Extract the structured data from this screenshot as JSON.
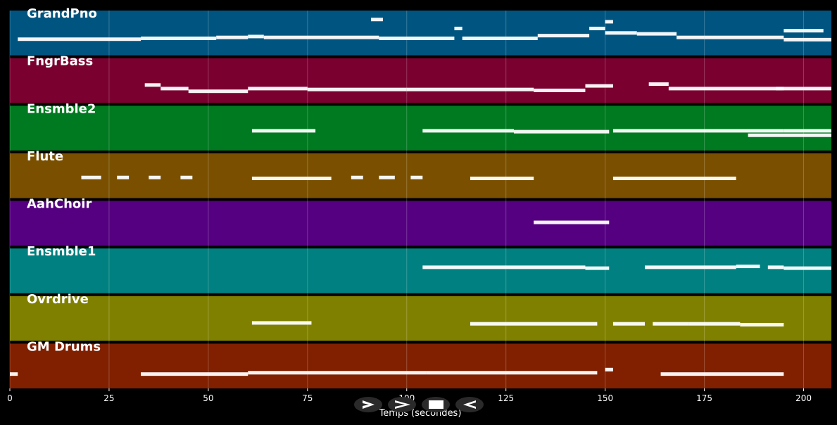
{
  "chart_data": {
    "type": "piano-roll",
    "xlabel": "Temps (secondes)",
    "xlim": [
      0,
      207
    ],
    "xticks": [
      0,
      25,
      50,
      75,
      100,
      125,
      150,
      175,
      200
    ],
    "grid": true,
    "background": "#000000",
    "note_color": "#ffffff",
    "tracks": [
      {
        "name": "GrandPno",
        "color": "#005580",
        "notes": [
          [
            2,
            33,
            0.64
          ],
          [
            33,
            52,
            0.62
          ],
          [
            52,
            60,
            0.6
          ],
          [
            60,
            64,
            0.58
          ],
          [
            64,
            93,
            0.6
          ],
          [
            91,
            94,
            0.2
          ],
          [
            93,
            112,
            0.62
          ],
          [
            112,
            114,
            0.4
          ],
          [
            114,
            133,
            0.62
          ],
          [
            133,
            146,
            0.56
          ],
          [
            146,
            150,
            0.4
          ],
          [
            150,
            152,
            0.25
          ],
          [
            150,
            158,
            0.5
          ],
          [
            158,
            168,
            0.52
          ],
          [
            168,
            175,
            0.6
          ],
          [
            175,
            195,
            0.6
          ],
          [
            195,
            205,
            0.45
          ],
          [
            195,
            207,
            0.65
          ]
        ]
      },
      {
        "name": "FngrBass",
        "color": "#7a0030",
        "notes": [
          [
            34,
            38,
            0.6
          ],
          [
            38,
            45,
            0.68
          ],
          [
            45,
            60,
            0.74
          ],
          [
            60,
            75,
            0.68
          ],
          [
            75,
            100,
            0.7
          ],
          [
            100,
            132,
            0.7
          ],
          [
            132,
            145,
            0.72
          ],
          [
            145,
            152,
            0.62
          ],
          [
            161,
            166,
            0.58
          ],
          [
            166,
            195,
            0.68
          ],
          [
            193,
            207,
            0.68
          ]
        ]
      },
      {
        "name": "Ensmble2",
        "color": "#007a20",
        "notes": [
          [
            61,
            77,
            0.56
          ],
          [
            104,
            127,
            0.56
          ],
          [
            127,
            151,
            0.58
          ],
          [
            152,
            195,
            0.56
          ],
          [
            186,
            207,
            0.66
          ],
          [
            195,
            207,
            0.56
          ]
        ]
      },
      {
        "name": "Flute",
        "color": "#7a5000",
        "notes": [
          [
            18,
            23,
            0.54
          ],
          [
            27,
            30,
            0.54
          ],
          [
            35,
            38,
            0.54
          ],
          [
            43,
            46,
            0.54
          ],
          [
            61,
            81,
            0.56
          ],
          [
            86,
            89,
            0.54
          ],
          [
            93,
            97,
            0.54
          ],
          [
            101,
            104,
            0.54
          ],
          [
            116,
            132,
            0.56
          ],
          [
            152,
            183,
            0.56
          ]
        ]
      },
      {
        "name": "AahChoir",
        "color": "#550080",
        "notes": [
          [
            132,
            151,
            0.48
          ]
        ]
      },
      {
        "name": "Ensmble1",
        "color": "#008080",
        "notes": [
          [
            104,
            145,
            0.42
          ],
          [
            145,
            151,
            0.44
          ],
          [
            160,
            183,
            0.42
          ],
          [
            183,
            189,
            0.4
          ],
          [
            191,
            195,
            0.42
          ],
          [
            195,
            207,
            0.44
          ]
        ]
      },
      {
        "name": "Ovrdrive",
        "color": "#808000",
        "notes": [
          [
            61,
            76,
            0.6
          ],
          [
            116,
            148,
            0.62
          ],
          [
            152,
            160,
            0.62
          ],
          [
            162,
            171,
            0.62
          ],
          [
            171,
            184,
            0.62
          ],
          [
            184,
            195,
            0.64
          ]
        ]
      },
      {
        "name": "GM Drums",
        "color": "#802000",
        "notes": [
          [
            0,
            2,
            0.68
          ],
          [
            33,
            60,
            0.68
          ],
          [
            60,
            105,
            0.65
          ],
          [
            105,
            148,
            0.65
          ],
          [
            150,
            152,
            0.58
          ],
          [
            164,
            195,
            0.68
          ]
        ]
      }
    ]
  },
  "controls": {
    "play": "play-icon",
    "skip": "skip-icon",
    "stop": "stop-icon",
    "back": "back-icon"
  }
}
